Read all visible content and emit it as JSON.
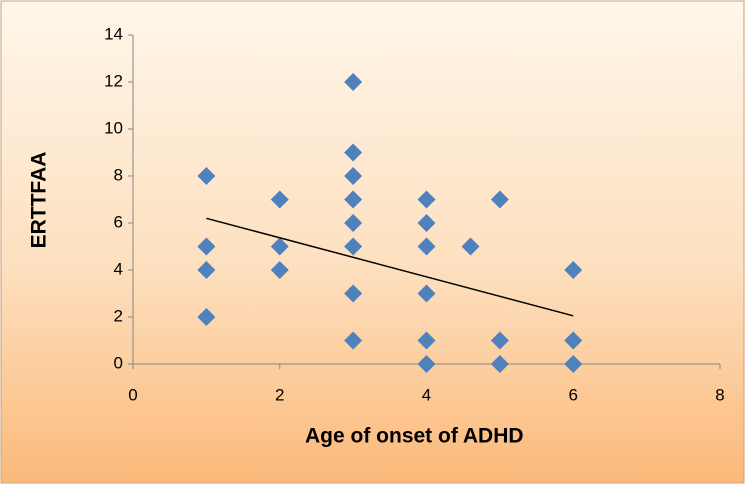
{
  "chart_data": {
    "type": "scatter",
    "x_label": "Age of onset of ADHD",
    "y_label": "ERTTFAA",
    "series": [
      {
        "color": "#4f81bd",
        "x": [
          1,
          1,
          1,
          1,
          2,
          2,
          2,
          3,
          3,
          3,
          3,
          3,
          3,
          3,
          3,
          4,
          4,
          4,
          4,
          4,
          4,
          4.6,
          5,
          5,
          5,
          6,
          6,
          6
        ],
        "y": [
          8,
          5,
          4,
          2,
          7,
          5,
          4,
          12,
          9,
          8,
          7,
          6,
          5,
          3,
          1,
          7,
          6,
          5,
          3,
          1,
          0,
          5,
          7,
          1,
          0,
          4,
          1,
          0
        ]
      }
    ],
    "trendline": {
      "x": [
        1,
        6
      ],
      "y": [
        6.2,
        2.05
      ],
      "color": "#000000"
    },
    "xlim": [
      0,
      8
    ],
    "xticks": [
      0,
      2,
      4,
      6,
      8
    ],
    "ylim": [
      0,
      14
    ],
    "yticks": [
      0,
      2,
      4,
      6,
      8,
      10,
      12,
      14
    ],
    "grid": false
  }
}
